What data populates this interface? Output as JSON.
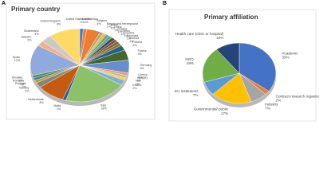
{
  "chart_data": [
    {
      "type": "pie",
      "panel": "A",
      "title": "Primary country",
      "categories": [
        "United States of America",
        "Austria",
        "Belgium",
        "Bosnia and Herzegovina",
        "Brazil",
        "China",
        "Croatia",
        "Cyprus",
        "Czechia",
        "Denmark",
        "Estonia",
        "Finland",
        "France",
        "Germany",
        "Greece",
        "Hungary",
        "Iran",
        "Ireland",
        "Italy",
        "Malta",
        "Netherlands",
        "Norway",
        "Portugal",
        "Romania",
        "Slovakia",
        "Spain",
        "Sweden",
        "Switzerland",
        "United Kingdom"
      ],
      "values": [
        1,
        1,
        4,
        1,
        1,
        1,
        1,
        1,
        1,
        1,
        1,
        2,
        4,
        5,
        1,
        1,
        1,
        2,
        18,
        1,
        8,
        2,
        1,
        1,
        1,
        12,
        2,
        3,
        9
      ],
      "value_labels": [
        "1%",
        "1%",
        "4%",
        "1%",
        "1%",
        "1%",
        "1%",
        "1%",
        "1%",
        "1%",
        "1%",
        "2%",
        "4%",
        "5%",
        "1%",
        "1%",
        "1%",
        "2%",
        "18%",
        "1%",
        "8%",
        "2%",
        "1%",
        "1%",
        "1%",
        "12%",
        "2%",
        "3%",
        "9%"
      ],
      "colors": [
        "#4472c4",
        "#ed7d31",
        "#ed7d31",
        "#a5a5a5",
        "#ffc000",
        "#5b9bd5",
        "#70ad47",
        "#264478",
        "#9e480e",
        "#636363",
        "#997300",
        "#255e91",
        "#43682b",
        "#698ed0",
        "#f1975a",
        "#b7b7b7",
        "#ffcd33",
        "#7cafdd",
        "#8cc168",
        "#335aa1",
        "#c55a11",
        "#848484",
        "#cc9a00",
        "#327dc2",
        "#5a8a39",
        "#8faadc",
        "#f4b183",
        "#c9c9c9",
        "#ffd966"
      ]
    },
    {
      "type": "pie",
      "panel": "B",
      "title": "Primary affiliation",
      "categories": [
        "Academic",
        "Contract research organization",
        "Industry",
        "Governmental/ public",
        "EU institutions",
        "NGO",
        "Health care (clinic or hospital)"
      ],
      "values": [
        33,
        2,
        7,
        17,
        7,
        18,
        10
      ],
      "value_labels": [
        "33%",
        "2%",
        "7%",
        "17%",
        "7%",
        "18%",
        "10%"
      ],
      "colors": [
        "#4472c4",
        "#ed7d31",
        "#a5a5a5",
        "#ffc000",
        "#5b9bd5",
        "#70ad47",
        "#264478"
      ]
    }
  ]
}
